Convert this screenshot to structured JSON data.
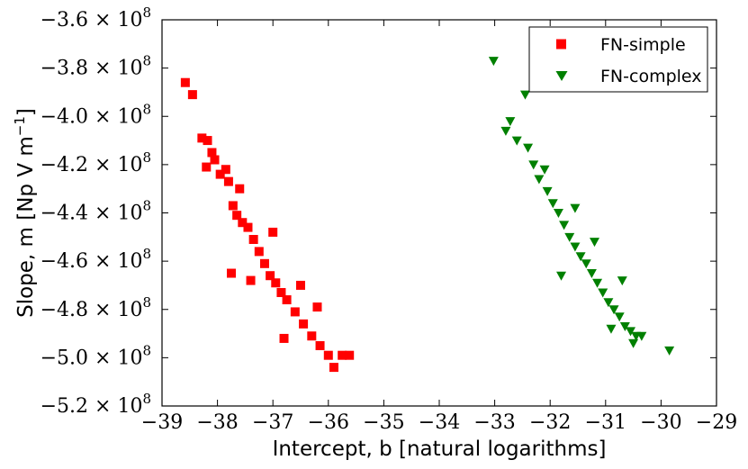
{
  "chart_data": {
    "type": "scatter",
    "title": "",
    "xlabel": "Intercept, b [natural logarithms]",
    "ylabel_main": "Slope, m [Np V m",
    "ylabel_exp": "−1",
    "ylabel_close": "]",
    "xlim": [
      -39,
      -29
    ],
    "ylim": [
      -520000000,
      -360000000
    ],
    "x_ticks": [
      -39,
      -38,
      -37,
      -36,
      -35,
      -34,
      -33,
      -32,
      -31,
      -30,
      -29
    ],
    "x_tick_labels": [
      "−39",
      "−38",
      "−37",
      "−36",
      "−35",
      "−34",
      "−33",
      "−32",
      "−31",
      "−30",
      "−29"
    ],
    "y_ticks": [
      -360000000,
      -380000000,
      -400000000,
      -420000000,
      -440000000,
      -460000000,
      -480000000,
      -500000000,
      -520000000
    ],
    "y_tick_labels": [
      {
        "mant": "−3.6",
        "exp": "8"
      },
      {
        "mant": "−3.8",
        "exp": "8"
      },
      {
        "mant": "−4.0",
        "exp": "8"
      },
      {
        "mant": "−4.2",
        "exp": "8"
      },
      {
        "mant": "−4.4",
        "exp": "8"
      },
      {
        "mant": "−4.6",
        "exp": "8"
      },
      {
        "mant": "−4.8",
        "exp": "8"
      },
      {
        "mant": "−5.0",
        "exp": "8"
      },
      {
        "mant": "−5.2",
        "exp": "8"
      }
    ],
    "legend_position": "top-right",
    "series": [
      {
        "name": "FN-simple",
        "marker": "square",
        "color": "#ff0000",
        "points": [
          [
            -38.58,
            -386000000
          ],
          [
            -38.45,
            -391000000
          ],
          [
            -38.28,
            -409000000
          ],
          [
            -38.18,
            -410000000
          ],
          [
            -38.1,
            -415000000
          ],
          [
            -38.05,
            -418000000
          ],
          [
            -37.95,
            -424000000
          ],
          [
            -37.85,
            -422000000
          ],
          [
            -37.8,
            -427000000
          ],
          [
            -37.72,
            -437000000
          ],
          [
            -37.65,
            -441000000
          ],
          [
            -37.55,
            -444000000
          ],
          [
            -37.45,
            -446000000
          ],
          [
            -37.35,
            -451000000
          ],
          [
            -37.25,
            -456000000
          ],
          [
            -37.15,
            -461000000
          ],
          [
            -37.05,
            -466000000
          ],
          [
            -36.95,
            -469000000
          ],
          [
            -36.85,
            -473000000
          ],
          [
            -36.75,
            -476000000
          ],
          [
            -36.6,
            -481000000
          ],
          [
            -36.45,
            -486000000
          ],
          [
            -36.3,
            -491000000
          ],
          [
            -36.15,
            -495000000
          ],
          [
            -36.0,
            -499000000
          ],
          [
            -35.9,
            -504000000
          ],
          [
            -35.75,
            -499000000
          ],
          [
            -35.62,
            -499000000
          ],
          [
            -37.75,
            -465000000
          ],
          [
            -37.4,
            -468000000
          ],
          [
            -36.8,
            -492000000
          ],
          [
            -38.2,
            -421000000
          ],
          [
            -37.6,
            -430000000
          ],
          [
            -37.0,
            -448000000
          ],
          [
            -36.5,
            -470000000
          ],
          [
            -36.2,
            -479000000
          ]
        ]
      },
      {
        "name": "FN-complex",
        "marker": "triangle-down",
        "color": "#008000",
        "points": [
          [
            -33.02,
            -377000000
          ],
          [
            -32.45,
            -391000000
          ],
          [
            -32.72,
            -402000000
          ],
          [
            -32.8,
            -406000000
          ],
          [
            -32.6,
            -410000000
          ],
          [
            -32.4,
            -413000000
          ],
          [
            -32.3,
            -420000000
          ],
          [
            -32.2,
            -426000000
          ],
          [
            -32.05,
            -431000000
          ],
          [
            -31.95,
            -436000000
          ],
          [
            -31.85,
            -440000000
          ],
          [
            -31.75,
            -445000000
          ],
          [
            -31.65,
            -450000000
          ],
          [
            -31.55,
            -454000000
          ],
          [
            -31.45,
            -458000000
          ],
          [
            -31.35,
            -461000000
          ],
          [
            -31.25,
            -465000000
          ],
          [
            -31.15,
            -469000000
          ],
          [
            -31.05,
            -473000000
          ],
          [
            -30.95,
            -477000000
          ],
          [
            -30.85,
            -480000000
          ],
          [
            -30.75,
            -483000000
          ],
          [
            -30.65,
            -487000000
          ],
          [
            -30.55,
            -489000000
          ],
          [
            -30.45,
            -491000000
          ],
          [
            -30.35,
            -491000000
          ],
          [
            -29.85,
            -497000000
          ],
          [
            -30.9,
            -488000000
          ],
          [
            -31.55,
            -438000000
          ],
          [
            -32.1,
            -422000000
          ],
          [
            -31.2,
            -452000000
          ],
          [
            -30.7,
            -468000000
          ],
          [
            -31.8,
            -466000000
          ],
          [
            -30.5,
            -494000000
          ]
        ]
      }
    ]
  }
}
